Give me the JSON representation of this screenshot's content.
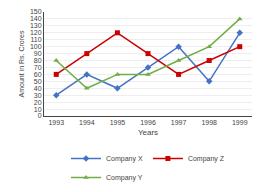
{
  "chart_data": {
    "type": "line",
    "xlabel": "Years",
    "ylabel": "Amount in Rs. Crores",
    "x": [
      1993,
      1994,
      1995,
      1996,
      1997,
      1998,
      1999
    ],
    "xlim": [
      1992.6,
      1999.4
    ],
    "xticks": [
      1993,
      1994,
      1995,
      1996,
      1997,
      1998,
      1999
    ],
    "ylim": [
      0,
      150
    ],
    "yticks": [
      0,
      10,
      20,
      30,
      40,
      50,
      60,
      70,
      80,
      90,
      100,
      110,
      120,
      130,
      140,
      150
    ],
    "grid": "y",
    "legend": "bottom",
    "series": [
      {
        "name": "Company X",
        "color": "#4472c4",
        "marker": "diamond",
        "values": [
          30,
          60,
          40,
          70,
          100,
          50,
          120
        ]
      },
      {
        "name": "Company Z",
        "color": "#cc0000",
        "marker": "square",
        "values": [
          60,
          90,
          120,
          90,
          60,
          80,
          100
        ]
      },
      {
        "name": "Company Y",
        "color": "#70ad47",
        "marker": "triangle-up",
        "values": [
          80,
          40,
          60,
          60,
          80,
          100,
          140
        ]
      }
    ]
  }
}
